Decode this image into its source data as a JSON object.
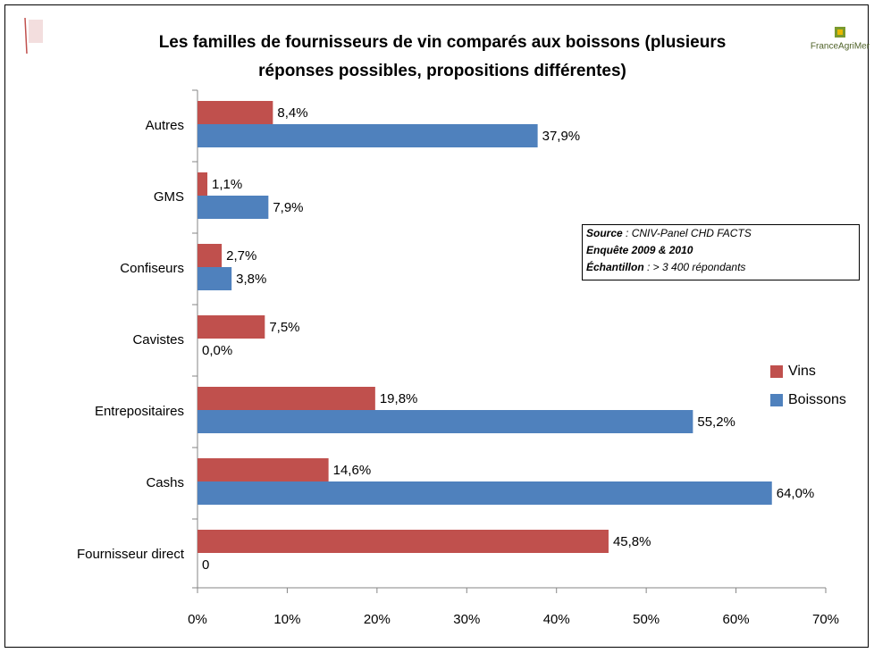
{
  "chart_data": {
    "type": "hbar",
    "title": [
      "Les familles de fournisseurs  de vin comparés aux boissons (plusieurs",
      "réponses possibles, propositions différentes)"
    ],
    "logo": "FranceAgriMer",
    "categories": [
      "Autres",
      "GMS",
      "Confiseurs",
      "Cavistes",
      "Entrepositaires",
      "Cashs",
      "Fournisseur direct"
    ],
    "series": [
      {
        "name": "Vins",
        "color": "#c0504d",
        "values": [
          8.4,
          1.1,
          2.7,
          7.5,
          19.8,
          14.6,
          45.8
        ],
        "value_labels": [
          "8,4%",
          "1,1%",
          "2,7%",
          "7,5%",
          "19,8%",
          "14,6%",
          "45,8%"
        ]
      },
      {
        "name": "Boissons",
        "color": "#4f81bd",
        "values": [
          37.9,
          7.9,
          3.8,
          0.0,
          55.2,
          64.0,
          0
        ],
        "value_labels": [
          "37,9%",
          "7,9%",
          "3,8%",
          "0,0%",
          "55,2%",
          "64,0%",
          "0"
        ]
      }
    ],
    "xlim": [
      0,
      70
    ],
    "xticks": [
      {
        "value": 0,
        "label": "0%"
      },
      {
        "value": 10,
        "label": "10%"
      },
      {
        "value": 20,
        "label": "20%"
      },
      {
        "value": 30,
        "label": "30%"
      },
      {
        "value": 40,
        "label": "40%"
      },
      {
        "value": 50,
        "label": "50%"
      },
      {
        "value": 60,
        "label": "60%"
      },
      {
        "value": 70,
        "label": "70%"
      }
    ],
    "legend": "right",
    "source_box": [
      {
        "label": "Source",
        "text": " : CNIV-Panel  CHD FACTS"
      },
      {
        "label": "Enquête 2009 & 2010",
        "text": ""
      },
      {
        "label": "Échantillon",
        "text": "  : > 3 400 répondants"
      }
    ]
  }
}
